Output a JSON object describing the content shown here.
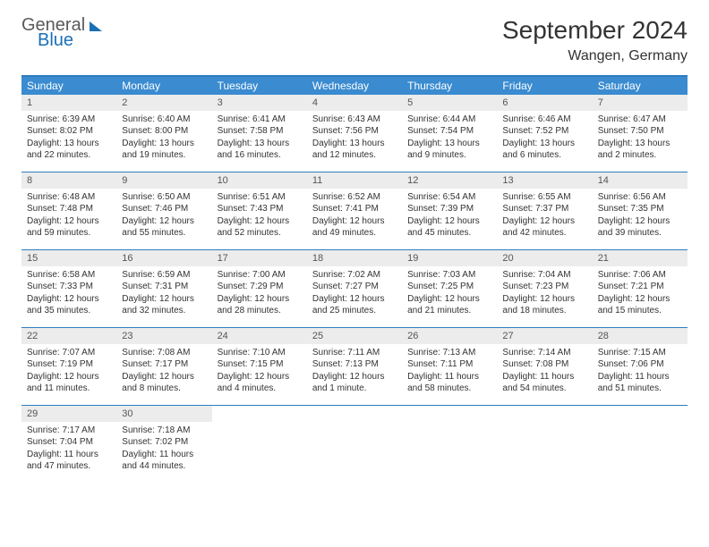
{
  "logo": {
    "text1": "General",
    "text2": "Blue"
  },
  "title": "September 2024",
  "location": "Wangen, Germany",
  "colors": {
    "header_bar": "#3a8bd0",
    "border": "#2e7cbf",
    "daynum_bg": "#ececec",
    "logo_blue": "#1a6fb5",
    "text": "#333333"
  },
  "weekdays": [
    "Sunday",
    "Monday",
    "Tuesday",
    "Wednesday",
    "Thursday",
    "Friday",
    "Saturday"
  ],
  "weeks": [
    [
      {
        "n": "1",
        "sr": "Sunrise: 6:39 AM",
        "ss": "Sunset: 8:02 PM",
        "d1": "Daylight: 13 hours",
        "d2": "and 22 minutes."
      },
      {
        "n": "2",
        "sr": "Sunrise: 6:40 AM",
        "ss": "Sunset: 8:00 PM",
        "d1": "Daylight: 13 hours",
        "d2": "and 19 minutes."
      },
      {
        "n": "3",
        "sr": "Sunrise: 6:41 AM",
        "ss": "Sunset: 7:58 PM",
        "d1": "Daylight: 13 hours",
        "d2": "and 16 minutes."
      },
      {
        "n": "4",
        "sr": "Sunrise: 6:43 AM",
        "ss": "Sunset: 7:56 PM",
        "d1": "Daylight: 13 hours",
        "d2": "and 12 minutes."
      },
      {
        "n": "5",
        "sr": "Sunrise: 6:44 AM",
        "ss": "Sunset: 7:54 PM",
        "d1": "Daylight: 13 hours",
        "d2": "and 9 minutes."
      },
      {
        "n": "6",
        "sr": "Sunrise: 6:46 AM",
        "ss": "Sunset: 7:52 PM",
        "d1": "Daylight: 13 hours",
        "d2": "and 6 minutes."
      },
      {
        "n": "7",
        "sr": "Sunrise: 6:47 AM",
        "ss": "Sunset: 7:50 PM",
        "d1": "Daylight: 13 hours",
        "d2": "and 2 minutes."
      }
    ],
    [
      {
        "n": "8",
        "sr": "Sunrise: 6:48 AM",
        "ss": "Sunset: 7:48 PM",
        "d1": "Daylight: 12 hours",
        "d2": "and 59 minutes."
      },
      {
        "n": "9",
        "sr": "Sunrise: 6:50 AM",
        "ss": "Sunset: 7:46 PM",
        "d1": "Daylight: 12 hours",
        "d2": "and 55 minutes."
      },
      {
        "n": "10",
        "sr": "Sunrise: 6:51 AM",
        "ss": "Sunset: 7:43 PM",
        "d1": "Daylight: 12 hours",
        "d2": "and 52 minutes."
      },
      {
        "n": "11",
        "sr": "Sunrise: 6:52 AM",
        "ss": "Sunset: 7:41 PM",
        "d1": "Daylight: 12 hours",
        "d2": "and 49 minutes."
      },
      {
        "n": "12",
        "sr": "Sunrise: 6:54 AM",
        "ss": "Sunset: 7:39 PM",
        "d1": "Daylight: 12 hours",
        "d2": "and 45 minutes."
      },
      {
        "n": "13",
        "sr": "Sunrise: 6:55 AM",
        "ss": "Sunset: 7:37 PM",
        "d1": "Daylight: 12 hours",
        "d2": "and 42 minutes."
      },
      {
        "n": "14",
        "sr": "Sunrise: 6:56 AM",
        "ss": "Sunset: 7:35 PM",
        "d1": "Daylight: 12 hours",
        "d2": "and 39 minutes."
      }
    ],
    [
      {
        "n": "15",
        "sr": "Sunrise: 6:58 AM",
        "ss": "Sunset: 7:33 PM",
        "d1": "Daylight: 12 hours",
        "d2": "and 35 minutes."
      },
      {
        "n": "16",
        "sr": "Sunrise: 6:59 AM",
        "ss": "Sunset: 7:31 PM",
        "d1": "Daylight: 12 hours",
        "d2": "and 32 minutes."
      },
      {
        "n": "17",
        "sr": "Sunrise: 7:00 AM",
        "ss": "Sunset: 7:29 PM",
        "d1": "Daylight: 12 hours",
        "d2": "and 28 minutes."
      },
      {
        "n": "18",
        "sr": "Sunrise: 7:02 AM",
        "ss": "Sunset: 7:27 PM",
        "d1": "Daylight: 12 hours",
        "d2": "and 25 minutes."
      },
      {
        "n": "19",
        "sr": "Sunrise: 7:03 AM",
        "ss": "Sunset: 7:25 PM",
        "d1": "Daylight: 12 hours",
        "d2": "and 21 minutes."
      },
      {
        "n": "20",
        "sr": "Sunrise: 7:04 AM",
        "ss": "Sunset: 7:23 PM",
        "d1": "Daylight: 12 hours",
        "d2": "and 18 minutes."
      },
      {
        "n": "21",
        "sr": "Sunrise: 7:06 AM",
        "ss": "Sunset: 7:21 PM",
        "d1": "Daylight: 12 hours",
        "d2": "and 15 minutes."
      }
    ],
    [
      {
        "n": "22",
        "sr": "Sunrise: 7:07 AM",
        "ss": "Sunset: 7:19 PM",
        "d1": "Daylight: 12 hours",
        "d2": "and 11 minutes."
      },
      {
        "n": "23",
        "sr": "Sunrise: 7:08 AM",
        "ss": "Sunset: 7:17 PM",
        "d1": "Daylight: 12 hours",
        "d2": "and 8 minutes."
      },
      {
        "n": "24",
        "sr": "Sunrise: 7:10 AM",
        "ss": "Sunset: 7:15 PM",
        "d1": "Daylight: 12 hours",
        "d2": "and 4 minutes."
      },
      {
        "n": "25",
        "sr": "Sunrise: 7:11 AM",
        "ss": "Sunset: 7:13 PM",
        "d1": "Daylight: 12 hours",
        "d2": "and 1 minute."
      },
      {
        "n": "26",
        "sr": "Sunrise: 7:13 AM",
        "ss": "Sunset: 7:11 PM",
        "d1": "Daylight: 11 hours",
        "d2": "and 58 minutes."
      },
      {
        "n": "27",
        "sr": "Sunrise: 7:14 AM",
        "ss": "Sunset: 7:08 PM",
        "d1": "Daylight: 11 hours",
        "d2": "and 54 minutes."
      },
      {
        "n": "28",
        "sr": "Sunrise: 7:15 AM",
        "ss": "Sunset: 7:06 PM",
        "d1": "Daylight: 11 hours",
        "d2": "and 51 minutes."
      }
    ],
    [
      {
        "n": "29",
        "sr": "Sunrise: 7:17 AM",
        "ss": "Sunset: 7:04 PM",
        "d1": "Daylight: 11 hours",
        "d2": "and 47 minutes."
      },
      {
        "n": "30",
        "sr": "Sunrise: 7:18 AM",
        "ss": "Sunset: 7:02 PM",
        "d1": "Daylight: 11 hours",
        "d2": "and 44 minutes."
      },
      null,
      null,
      null,
      null,
      null
    ]
  ]
}
